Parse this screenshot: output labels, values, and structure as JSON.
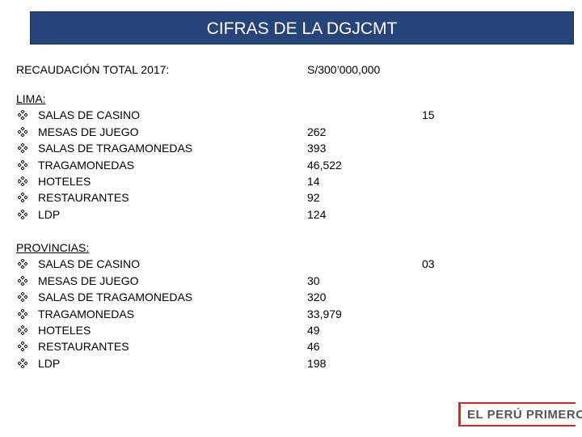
{
  "header": {
    "title": "CIFRAS DE LA DGJCMT"
  },
  "total": {
    "label": "RECAUDACIÓN TOTAL 2017:",
    "value": "S/300’000,000"
  },
  "sections": [
    {
      "title": "LIMA:",
      "items": [
        "SALAS DE CASINO",
        "MESAS DE JUEGO",
        "SALAS DE TRAGAMONEDAS",
        "TRAGAMONEDAS",
        "HOTELES",
        "RESTAURANTES",
        "LDP"
      ],
      "values": [
        "15",
        "262",
        "393",
        "46,522",
        "14",
        "92",
        "124"
      ]
    },
    {
      "title": "PROVINCIAS:",
      "items": [
        "SALAS DE CASINO",
        "MESAS DE JUEGO",
        "SALAS DE TRAGAMONEDAS",
        "TRAGAMONEDAS",
        "HOTELES",
        "RESTAURANTES",
        "LDP"
      ],
      "values": [
        "03",
        "30",
        "320",
        "33,979",
        "49",
        "46",
        "198"
      ]
    }
  ],
  "logo": {
    "text": "EL PERÚ PRIMERO"
  }
}
